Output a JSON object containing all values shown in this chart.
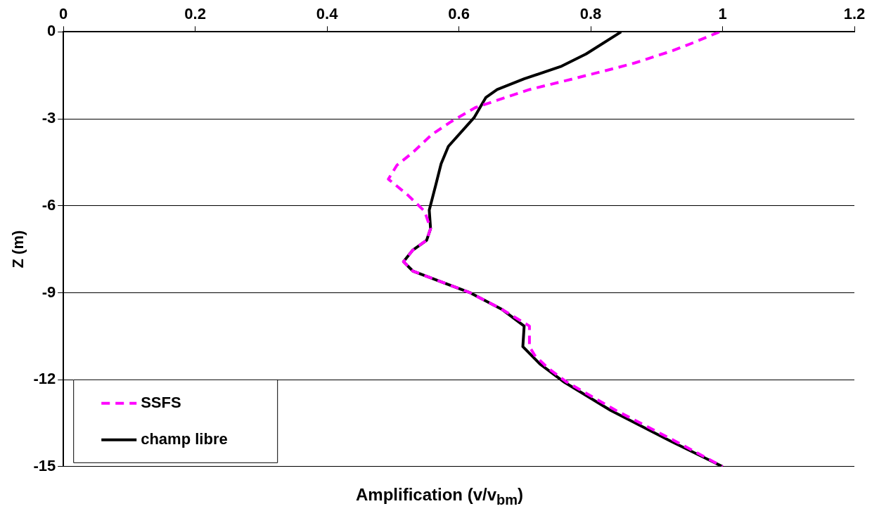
{
  "chart_data": {
    "type": "line",
    "xlabel": "Amplification (v/v$_{bm}$)",
    "ylabel": "Z (m)",
    "xlim": [
      0,
      1.2
    ],
    "xticks": [
      0,
      0.2,
      0.4,
      0.6,
      0.8,
      1,
      1.2
    ],
    "ylim": [
      -15,
      0
    ],
    "yticks": [
      0,
      -3,
      -6,
      -9,
      -12,
      -15
    ],
    "grid": "y",
    "legend": "bottom left",
    "marker": "none",
    "series": [
      {
        "name": "SSFS",
        "color": "#ff00ff",
        "line_style": "dashed",
        "x": [
          0.995,
          0.957,
          0.924,
          0.867,
          0.834,
          0.773,
          0.707,
          0.658,
          0.625,
          0.588,
          0.559,
          0.53,
          0.506,
          0.493,
          0.522,
          0.548,
          0.557,
          0.551,
          0.53,
          0.516,
          0.53,
          0.575,
          0.616,
          0.665,
          0.707,
          0.707,
          0.715,
          0.735,
          0.764,
          0.838,
          0.924,
          1
        ],
        "values": [
          0,
          -0.36,
          -0.65,
          -1.07,
          -1.27,
          -1.62,
          -1.99,
          -2.36,
          -2.61,
          -3.1,
          -3.54,
          -4.16,
          -4.6,
          -5.08,
          -5.62,
          -6.19,
          -6.79,
          -7.19,
          -7.53,
          -7.93,
          -8.25,
          -8.64,
          -8.99,
          -9.57,
          -10.15,
          -10.86,
          -11.16,
          -11.6,
          -12.09,
          -13.06,
          -14.07,
          -15
        ]
      },
      {
        "name": "champ libre",
        "color": "#000000",
        "line_style": "solid",
        "x": [
          0.846,
          0.793,
          0.756,
          0.699,
          0.658,
          0.641,
          0.623,
          0.584,
          0.573,
          0.565,
          0.555,
          0.557,
          0.551,
          0.53,
          0.516,
          0.53,
          0.575,
          0.616,
          0.665,
          0.699,
          0.697,
          0.723,
          0.76,
          0.83,
          0.921,
          1
        ],
        "values": [
          0,
          -0.76,
          -1.18,
          -1.62,
          -1.99,
          -2.26,
          -2.96,
          -3.95,
          -4.55,
          -5.27,
          -6.15,
          -6.79,
          -7.19,
          -7.53,
          -7.93,
          -8.25,
          -8.64,
          -8.99,
          -9.57,
          -10.15,
          -10.86,
          -11.46,
          -12.09,
          -13.06,
          -14.12,
          -15
        ]
      }
    ]
  }
}
